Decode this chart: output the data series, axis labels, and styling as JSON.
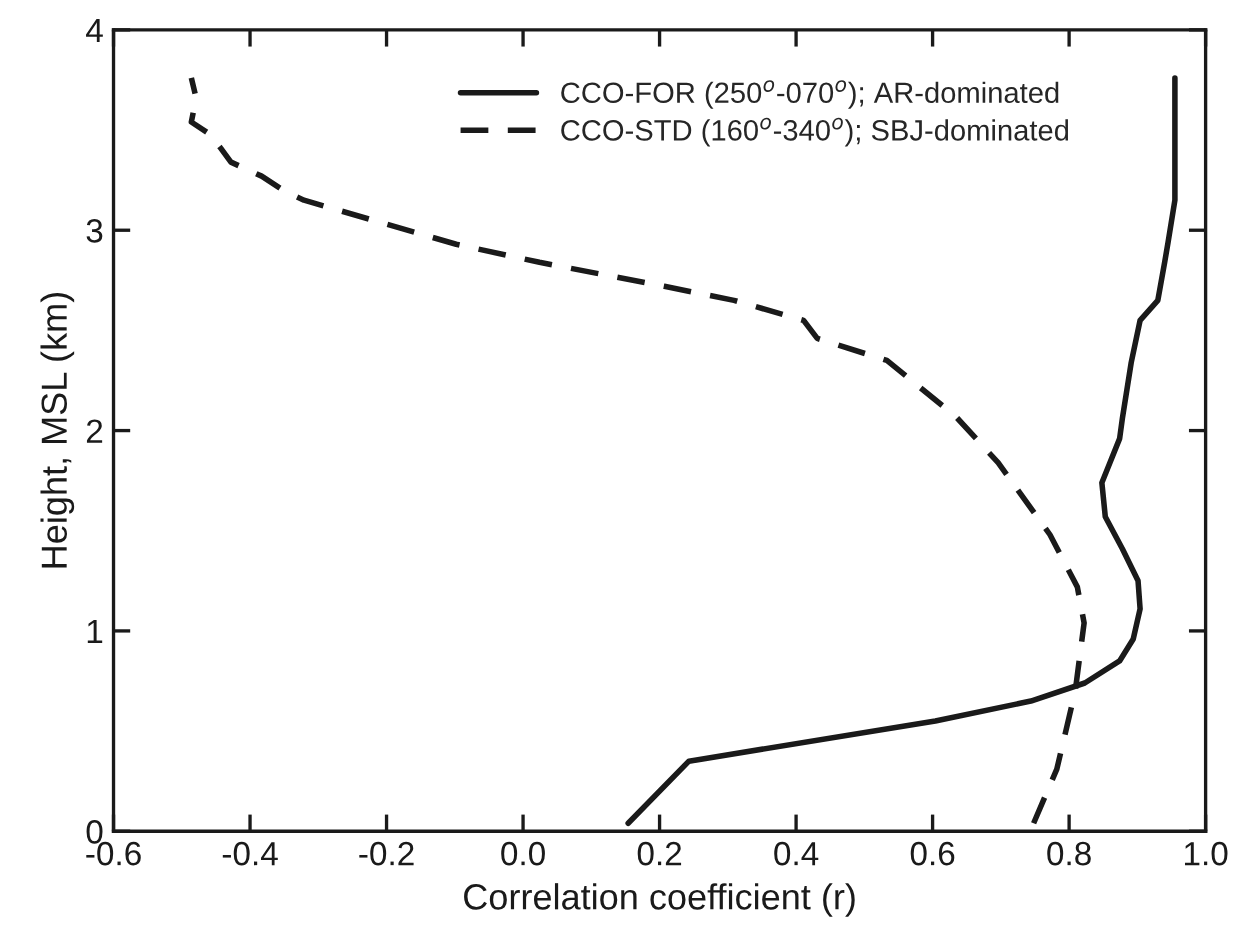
{
  "chart_data": {
    "type": "line",
    "xlabel": "Correlation coefficient (r)",
    "ylabel": "Height, MSL (km)",
    "xlim": [
      -0.6,
      1.0
    ],
    "xticks": [
      {
        "value": -0.6,
        "label": "-0.6"
      },
      {
        "value": -0.4,
        "label": "-0.4"
      },
      {
        "value": -0.2,
        "label": "-0.2"
      },
      {
        "value": 0.0,
        "label": "0.0"
      },
      {
        "value": 0.2,
        "label": "0.2"
      },
      {
        "value": 0.4,
        "label": "0.4"
      },
      {
        "value": 0.6,
        "label": "0.6"
      },
      {
        "value": 0.8,
        "label": "0.8"
      },
      {
        "value": 1.0,
        "label": "1.0"
      }
    ],
    "ylim": [
      0,
      4
    ],
    "yticks": [
      0,
      1,
      2,
      3,
      4
    ],
    "grid": false,
    "legend": "top right",
    "marker": "none",
    "series": [
      {
        "name": "CCO-FOR (250$^{o}$-070$^{o}$); AR-dominated",
        "color": "#1a1a1a",
        "line_style": "solid",
        "x": [
          0.154,
          0.243,
          0.604,
          0.744,
          0.823,
          0.874,
          0.894,
          0.904,
          0.901,
          0.878,
          0.853,
          0.848,
          0.874,
          0.878,
          0.891,
          0.904,
          0.93,
          0.94,
          0.945,
          0.955,
          0.955
        ],
        "values": [
          0.04,
          0.35,
          0.55,
          0.65,
          0.74,
          0.85,
          0.96,
          1.11,
          1.25,
          1.41,
          1.57,
          1.74,
          1.96,
          2.06,
          2.34,
          2.55,
          2.65,
          2.84,
          2.94,
          3.15,
          3.76
        ]
      },
      {
        "name": "CCO-STD (160$^{o}$-340$^{o}$); SBJ-dominated",
        "color": "#1a1a1a",
        "line_style": "dashed",
        "x": [
          0.748,
          0.782,
          0.809,
          0.822,
          0.812,
          0.772,
          0.696,
          0.634,
          0.533,
          0.431,
          0.411,
          0.309,
          0.207,
          0.024,
          -0.098,
          -0.22,
          -0.321,
          -0.347,
          -0.383,
          -0.428,
          -0.443,
          -0.459,
          -0.486,
          -0.479,
          -0.486
        ],
        "values": [
          0.04,
          0.31,
          0.7,
          1.04,
          1.22,
          1.48,
          1.84,
          2.07,
          2.35,
          2.46,
          2.55,
          2.65,
          2.72,
          2.84,
          2.93,
          3.05,
          3.15,
          3.19,
          3.27,
          3.34,
          3.41,
          3.48,
          3.54,
          3.66,
          3.76
        ]
      }
    ]
  }
}
